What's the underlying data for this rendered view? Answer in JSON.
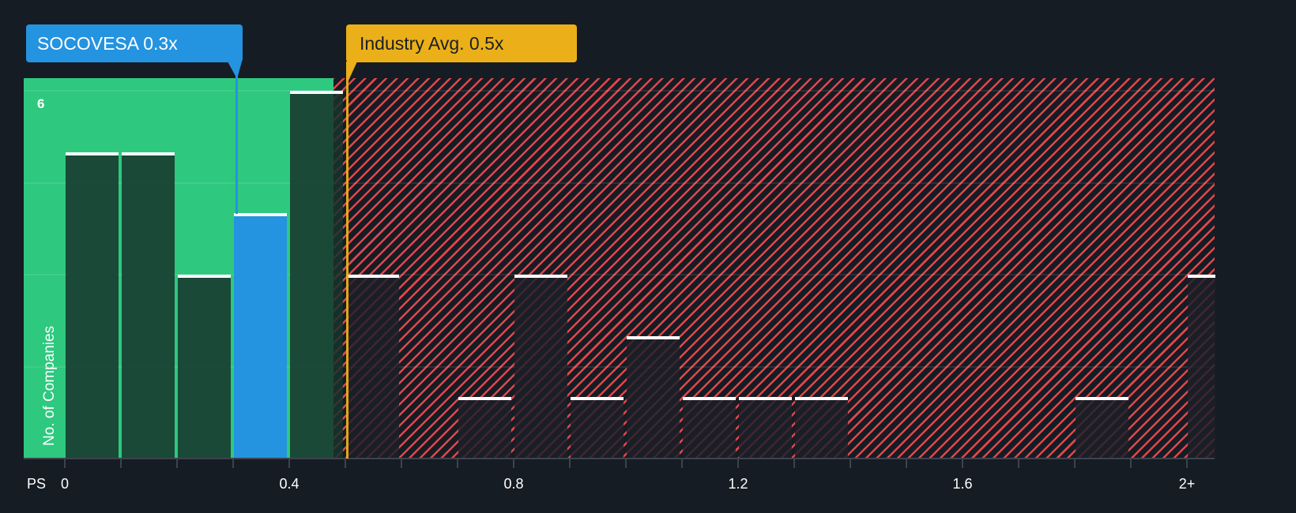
{
  "callouts": {
    "company": {
      "label": "SOCOVESA 0.3x",
      "value": 0.3,
      "color": "#2493e0"
    },
    "industry": {
      "label": "Industry Avg. 0.5x",
      "value": 0.5,
      "color": "#ebb019"
    }
  },
  "axes": {
    "y_title": "No. of Companies",
    "y_top_label": "6",
    "x_title": "PS",
    "x_labels": [
      "0",
      "0.4",
      "0.8",
      "1.2",
      "1.6",
      "2+"
    ]
  },
  "colors": {
    "background": "#161c24",
    "undervalued_zone": "#2ec87f",
    "overvalued_hatch": "#e0474b",
    "company_bar": "#2493e0"
  },
  "chart_data": {
    "type": "bar",
    "title": "",
    "xlabel": "PS",
    "ylabel": "No. of Companies",
    "ylim": [
      0,
      6
    ],
    "yticks": [
      0,
      1.5,
      3,
      4.5,
      6
    ],
    "categories": [
      "0-0.1",
      "0.1-0.2",
      "0.2-0.3",
      "0.3-0.4",
      "0.4-0.5",
      "0.5-0.6",
      "0.6-0.7",
      "0.7-0.8",
      "0.8-0.9",
      "0.9-1.0",
      "1.0-1.1",
      "1.1-1.2",
      "1.2-1.3",
      "1.3-1.4",
      "1.4-1.5",
      "1.5-1.6",
      "1.6-1.7",
      "1.7-1.8",
      "1.8-1.9",
      "1.9-2.0",
      "2+"
    ],
    "values": [
      5,
      5,
      3,
      4,
      6,
      3,
      0,
      1,
      3,
      1,
      2,
      1,
      1,
      1,
      0,
      0,
      0,
      0,
      1,
      0,
      3
    ],
    "highlight": {
      "category": "0.3-0.4",
      "label": "SOCOVESA 0.3x"
    },
    "reference_line": {
      "x": 0.5,
      "label": "Industry Avg. 0.5x"
    },
    "x_tick_labels": [
      "0",
      "0.4",
      "0.8",
      "1.2",
      "1.6",
      "2+"
    ],
    "grid": true,
    "legend": "none"
  }
}
